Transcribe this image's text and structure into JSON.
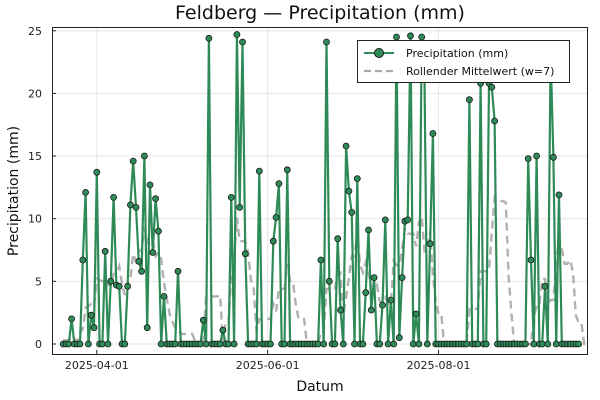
{
  "chart_data": {
    "type": "line",
    "title": "Feldberg — Precipitation (mm)",
    "xlabel": "Datum",
    "ylabel": "Precipitation (mm)",
    "x_start": "2025-03-20",
    "x_range": [
      "2025-03-16",
      "2025-09-23"
    ],
    "ylim": [
      -0.8,
      25.3
    ],
    "x_ticks": [
      "2025-04-01",
      "2025-06-01",
      "2025-08-01"
    ],
    "y_ticks": [
      0,
      5,
      10,
      15,
      20,
      25
    ],
    "grid": true,
    "legend_position": "top-right",
    "colors": {
      "precip": "#2e8b57",
      "rolling": "#a9a9a9",
      "marker_edge": "#1a1a1a"
    },
    "series": [
      {
        "name": "Precipitation (mm)",
        "style": "line-with-markers",
        "values": [
          0,
          0,
          0,
          2.0,
          0,
          0,
          0,
          6.7,
          12.1,
          0,
          2.3,
          1.3,
          13.7,
          0,
          0,
          7.4,
          0,
          5.0,
          11.7,
          4.7,
          4.6,
          0,
          0,
          4.6,
          11.1,
          14.6,
          10.9,
          6.6,
          5.8,
          15.0,
          1.3,
          12.7,
          7.3,
          11.6,
          9.0,
          0,
          3.8,
          0,
          0,
          0,
          0,
          5.8,
          0,
          0,
          0,
          0,
          0,
          0,
          0,
          0,
          1.9,
          0,
          24.4,
          0,
          0,
          0,
          0,
          1.1,
          0,
          0,
          11.7,
          0,
          24.7,
          10.9,
          24.1,
          7.2,
          0,
          0,
          0,
          0,
          13.8,
          0,
          0,
          0,
          0,
          8.2,
          10.1,
          12.8,
          0,
          0,
          13.9,
          0,
          0,
          0,
          0,
          0,
          0,
          0,
          0,
          0,
          0,
          0,
          6.7,
          0,
          24.1,
          5.0,
          0,
          0,
          8.4,
          2.7,
          0,
          15.8,
          12.2,
          10.5,
          0,
          13.2,
          0,
          0,
          4.1,
          9.1,
          2.7,
          5.3,
          0,
          0,
          3.1,
          9.9,
          0,
          3.5,
          0,
          24.5,
          0.5,
          5.3,
          9.8,
          9.9,
          24.6,
          0,
          2.4,
          0,
          24.5,
          21.3,
          0,
          8.0,
          16.8,
          0,
          0,
          0,
          0,
          0,
          0,
          0,
          0,
          0,
          0,
          0,
          0,
          19.5,
          0,
          0,
          0,
          20.8,
          0,
          0,
          20.8,
          20.5,
          17.8,
          0,
          0,
          0,
          0,
          0,
          0,
          0,
          0,
          0,
          0,
          0,
          14.8,
          6.7,
          0,
          15.0,
          0,
          0,
          4.6,
          0,
          23.2,
          14.9,
          0,
          11.9,
          0,
          0,
          0,
          0,
          0,
          0,
          0
        ]
      },
      {
        "name": "Rollender Mittelwert (w=7)",
        "style": "dashed",
        "values": [
          0.3,
          0.3,
          0.3,
          0.6,
          0.4,
          0.2,
          0.9,
          1.2,
          2.9,
          3.0,
          3.2,
          3.0,
          5.2,
          5.1,
          5.0,
          5.2,
          4.7,
          4.7,
          5.6,
          5.6,
          6.2,
          4.8,
          3.9,
          4.8,
          5.2,
          7.2,
          6.6,
          7.4,
          7.5,
          9.3,
          8.1,
          8.0,
          8.3,
          7.0,
          7.3,
          6.8,
          4.9,
          3.6,
          2.4,
          1.8,
          1.3,
          1.1,
          0.8,
          0.8,
          0.8,
          0.8,
          0.8,
          0.3,
          0.3,
          0.3,
          0.3,
          3.8,
          3.8,
          3.8,
          3.8,
          3.8,
          3.9,
          0.2,
          1.8,
          1.8,
          5.4,
          6.7,
          10.1,
          8.2,
          8.2,
          8.2,
          7.3,
          5.1,
          4.4,
          1.0,
          2.0,
          2.0,
          2.0,
          2.0,
          2.0,
          3.2,
          2.6,
          4.4,
          4.4,
          4.4,
          6.4,
          5.0,
          5.0,
          3.2,
          2.0,
          2.0,
          2.0,
          0,
          0,
          0,
          0,
          0,
          1.0,
          1.0,
          4.4,
          4.4,
          4.4,
          4.4,
          5.6,
          5.7,
          2.3,
          3.7,
          5.3,
          7.0,
          7.0,
          8.9,
          6.3,
          5.7,
          6.5,
          5.8,
          4.3,
          4.4,
          4.7,
          3.4,
          3.3,
          3.7,
          3.2,
          3.2,
          6.6,
          6.3,
          6.2,
          7.6,
          9.2,
          8.8,
          8.8,
          8.8,
          7.8,
          9.7,
          10.2,
          7.4,
          7.5,
          9.0,
          5.4,
          3.5,
          2.4,
          2.4,
          0,
          0,
          0,
          0,
          0,
          0,
          0,
          0,
          0,
          2.8,
          2.8,
          2.8,
          2.8,
          5.8,
          5.8,
          5.8,
          5.9,
          8.9,
          11.7,
          11.4,
          11.4,
          11.4,
          11.3,
          5.4,
          2.5,
          0,
          0,
          0,
          0,
          0,
          0,
          0,
          2.1,
          3.1,
          3.1,
          5.2,
          5.2,
          3.3,
          3.5,
          3.5,
          6.5,
          8.4,
          7.6,
          6.4,
          6.4,
          6.7,
          5.7,
          2.3,
          1.7,
          1.7,
          0,
          0,
          0
        ]
      }
    ]
  }
}
